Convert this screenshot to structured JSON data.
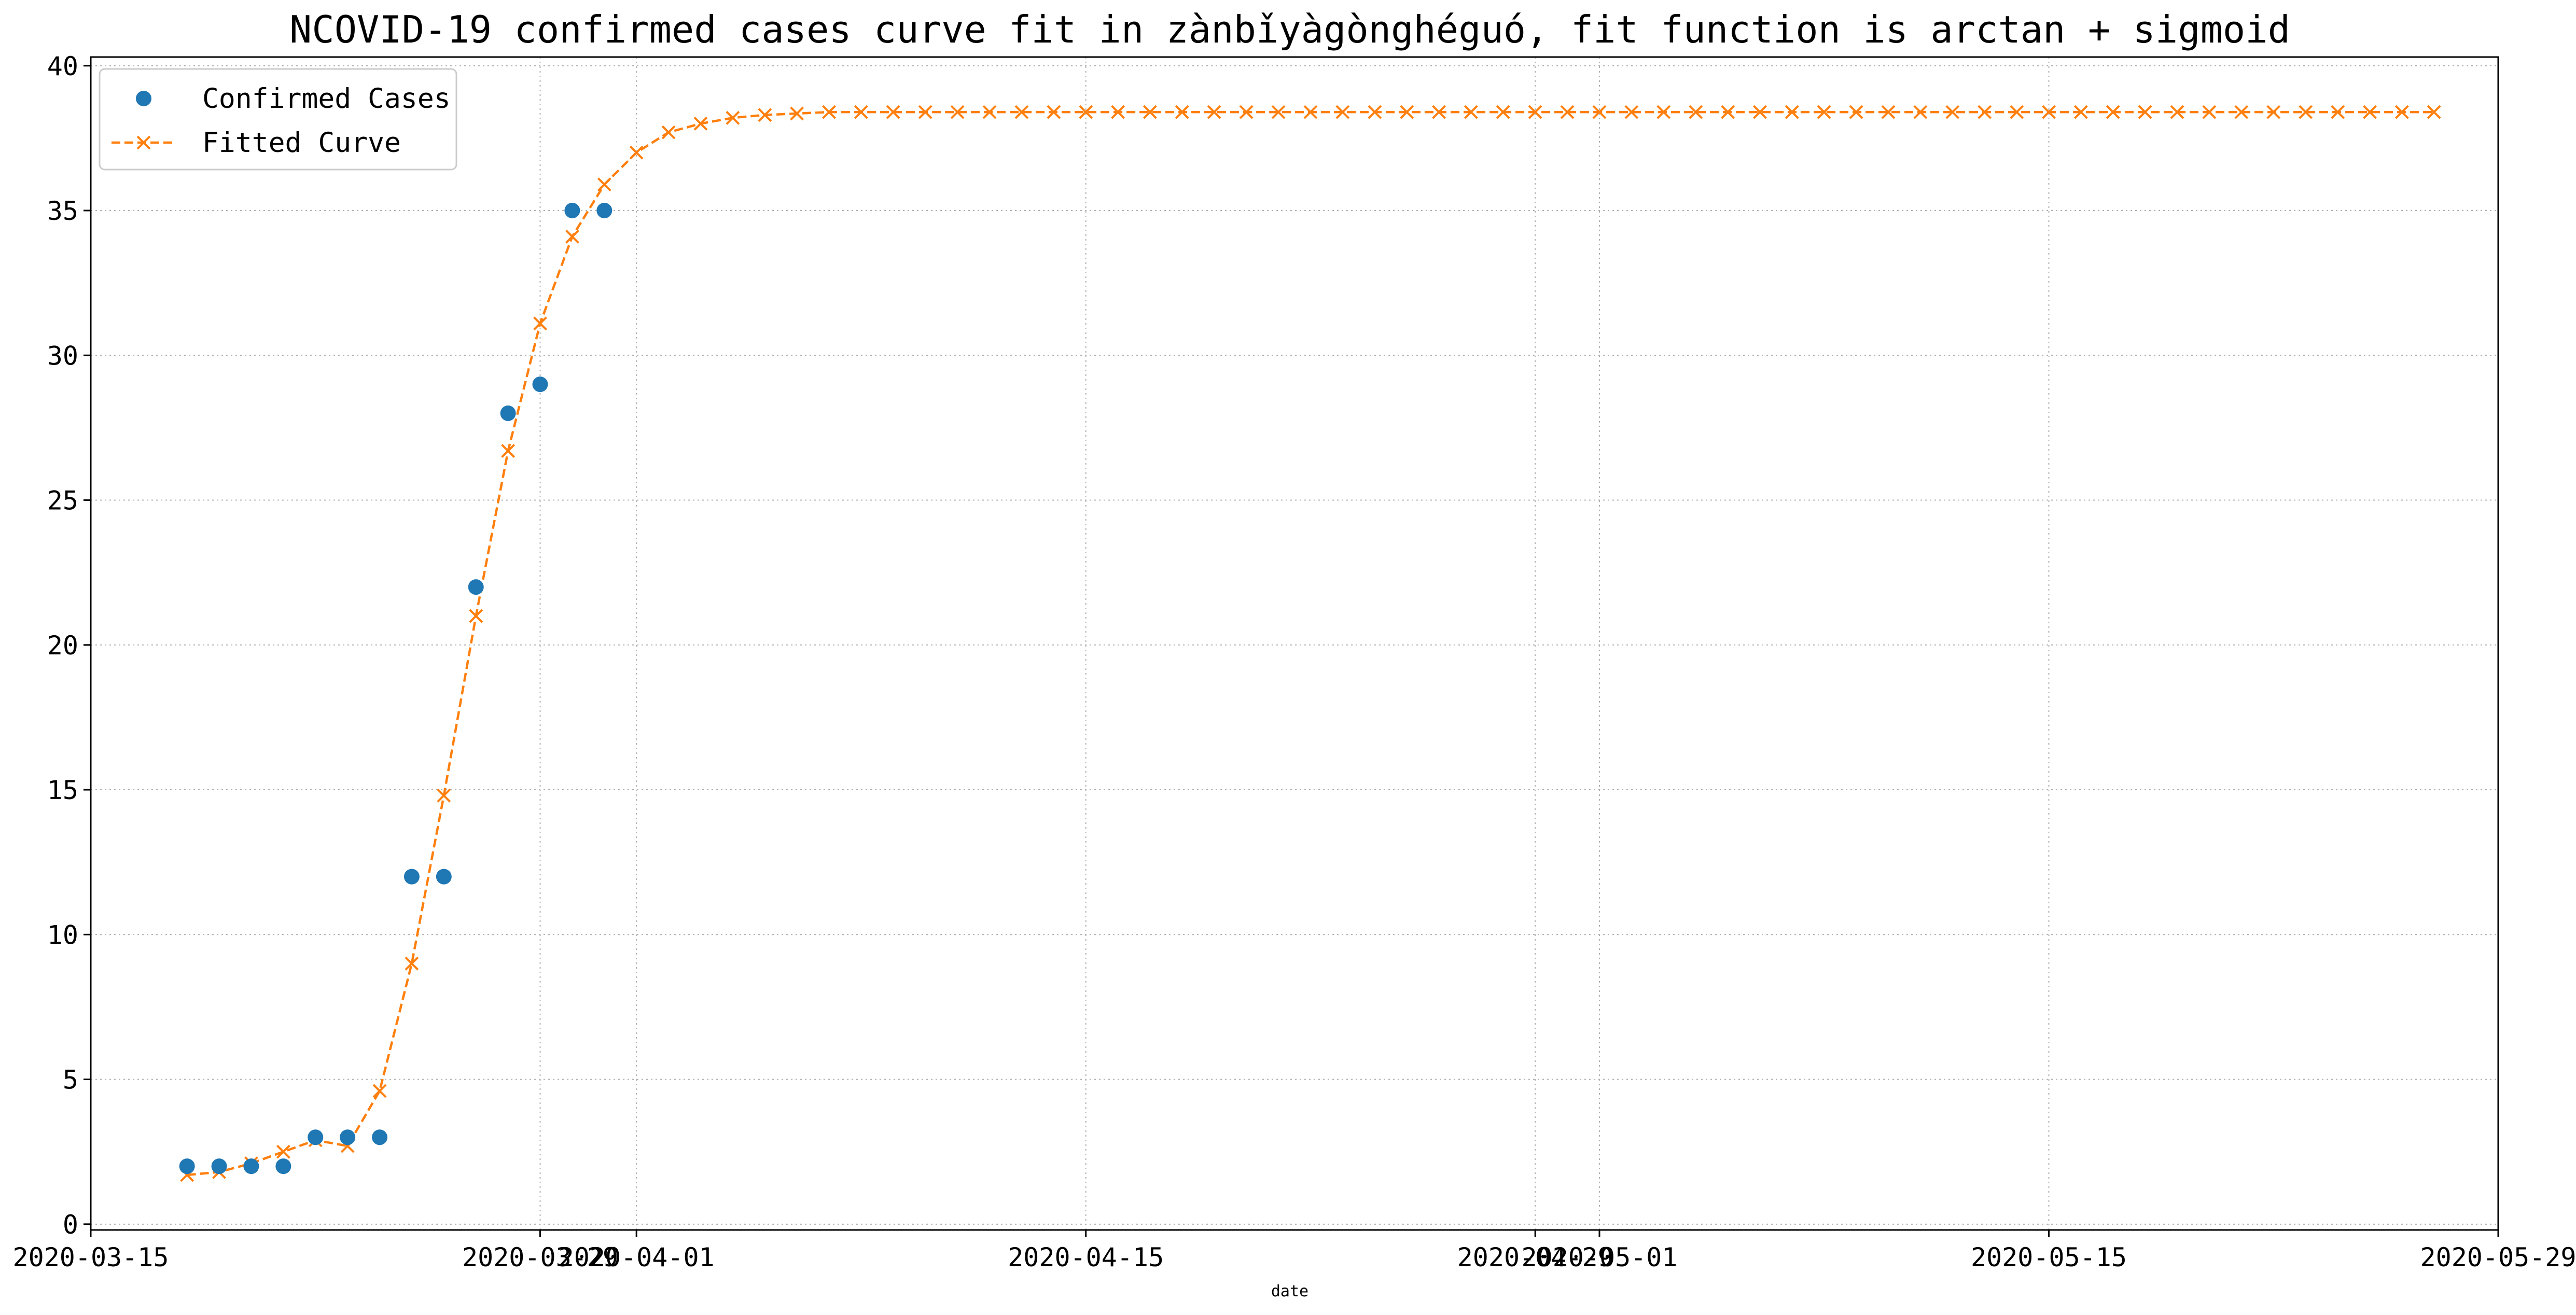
{
  "chart_data": {
    "type": "line",
    "title": "NCOVID-19 confirmed cases curve fit in zànbǐyàgònghéguó, fit function is arctan + sigmoid",
    "xlabel": "date",
    "ylabel": "",
    "ylim": [
      -0.2,
      40.3
    ],
    "xlim": [
      "2020-03-15",
      "2020-05-29"
    ],
    "grid": true,
    "legend_position": "top-left",
    "x_ticks": [
      {
        "date": "2020-03-15",
        "label": "2020-03-15"
      },
      {
        "date": "2020-03-29",
        "label": "2020-03-29"
      },
      {
        "date": "2020-04-01",
        "label": "2020-04-01"
      },
      {
        "date": "2020-04-15",
        "label": "2020-04-15"
      },
      {
        "date": "2020-04-29",
        "label": "2020-04-29"
      },
      {
        "date": "2020-05-01",
        "label": "2020-05-01"
      },
      {
        "date": "2020-05-15",
        "label": "2020-05-15"
      },
      {
        "date": "2020-05-29",
        "label": "2020-05-29"
      }
    ],
    "y_ticks": [
      0,
      5,
      10,
      15,
      20,
      25,
      30,
      35,
      40
    ],
    "series": [
      {
        "name": "Confirmed Cases",
        "style": "points",
        "color": "#1f77b4",
        "x": [
          "2020-03-18",
          "2020-03-19",
          "2020-03-20",
          "2020-03-21",
          "2020-03-22",
          "2020-03-23",
          "2020-03-24",
          "2020-03-25",
          "2020-03-26",
          "2020-03-27",
          "2020-03-28",
          "2020-03-29",
          "2020-03-30",
          "2020-03-31"
        ],
        "y": [
          2,
          2,
          2,
          2,
          3,
          3,
          3,
          12,
          12,
          22,
          28,
          29,
          35,
          35
        ]
      },
      {
        "name": "Fitted Curve",
        "style": "dashed-x",
        "color": "#ff7f0e",
        "x_start": "2020-03-18",
        "x_end": "2020-05-27",
        "y": [
          1.7,
          1.8,
          2.1,
          2.5,
          2.9,
          2.7,
          4.6,
          9.0,
          14.8,
          21.0,
          26.7,
          31.1,
          34.1,
          35.9,
          37.0,
          37.7,
          38.0,
          38.2,
          38.3,
          38.35,
          38.4
        ]
      }
    ]
  }
}
